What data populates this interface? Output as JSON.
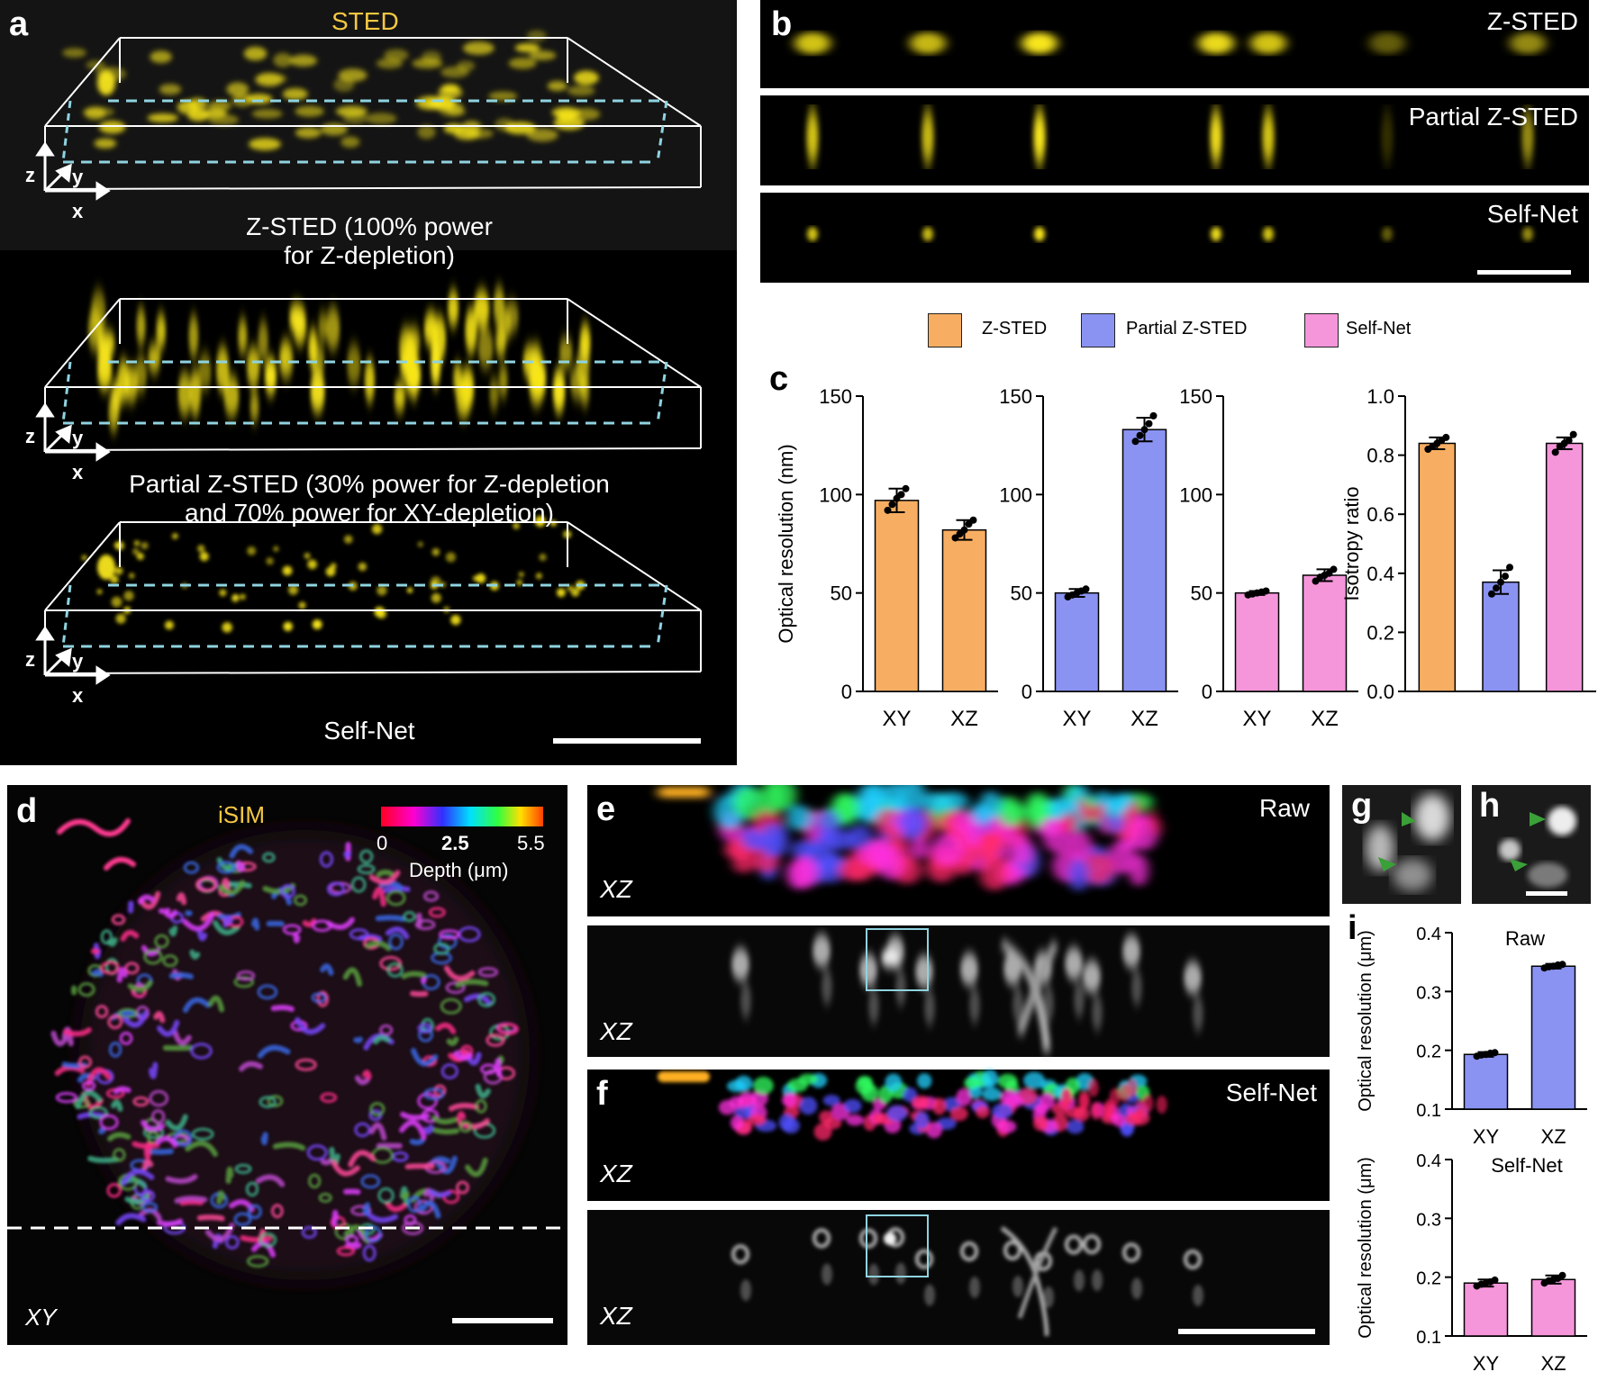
{
  "panel_a": {
    "label": "a",
    "modality": "STED",
    "captions": [
      "Z-STED (100% power",
      "for Z-depletion)",
      "Partial Z-STED (30% power for Z-depletion",
      "and 70% power for XY-depletion)",
      "Self-Net"
    ],
    "axes": {
      "z": "z",
      "y": "y",
      "x": "x"
    }
  },
  "panel_b": {
    "label": "b",
    "rows": [
      "Z-STED",
      "Partial Z-STED",
      "Self-Net"
    ]
  },
  "legend": [
    "Z-STED",
    "Partial Z-STED",
    "Self-Net"
  ],
  "colors": {
    "z_sted": "#F8AE62",
    "partial": "#8A93F2",
    "selfnet": "#F596DA",
    "yellow": "#F7E51A",
    "box": "#8fd3e0"
  },
  "panel_c": {
    "label": "c"
  },
  "panel_d": {
    "label": "d",
    "modality": "iSIM",
    "colorbar_ticks": [
      "0",
      "2.5",
      "5.5"
    ],
    "colorbar_label": "Depth (μm)",
    "view": "XY"
  },
  "panel_e": {
    "label": "e",
    "tag": "Raw",
    "view": "XZ"
  },
  "panel_f": {
    "label": "f",
    "tag": "Self-Net",
    "view": "XZ"
  },
  "panel_g": {
    "label": "g"
  },
  "panel_h": {
    "label": "h"
  },
  "panel_i": {
    "label": "i"
  },
  "chart_data": [
    {
      "type": "bar",
      "panel": "c1",
      "title": "",
      "ylabel": "Optical resolution (nm)",
      "ylim": [
        0,
        150
      ],
      "yticks": [
        0,
        50,
        100,
        150
      ],
      "categories": [
        "XY",
        "XZ"
      ],
      "series": [
        {
          "name": "Z-STED",
          "values": [
            97,
            82
          ]
        }
      ],
      "error": [
        6,
        5
      ],
      "points": [
        [
          92,
          95,
          98,
          100,
          103
        ],
        [
          78,
          80,
          82,
          85,
          87
        ]
      ]
    },
    {
      "type": "bar",
      "panel": "c2",
      "title": "",
      "ylabel": "",
      "ylim": [
        0,
        150
      ],
      "yticks": [
        0,
        50,
        100,
        150
      ],
      "categories": [
        "XY",
        "XZ"
      ],
      "series": [
        {
          "name": "Partial Z-STED",
          "values": [
            50,
            133
          ]
        }
      ],
      "error": [
        2,
        6
      ],
      "points": [
        [
          48,
          49,
          50,
          51,
          52
        ],
        [
          127,
          130,
          133,
          136,
          140
        ]
      ]
    },
    {
      "type": "bar",
      "panel": "c3",
      "title": "",
      "ylabel": "",
      "ylim": [
        0,
        150
      ],
      "yticks": [
        0,
        50,
        100,
        150
      ],
      "categories": [
        "XY",
        "XZ"
      ],
      "series": [
        {
          "name": "Self-Net",
          "values": [
            50,
            59
          ]
        }
      ],
      "error": [
        1,
        3
      ],
      "points": [
        [
          49,
          49.5,
          50,
          50.5,
          51
        ],
        [
          56,
          58,
          59,
          60,
          62
        ]
      ]
    },
    {
      "type": "bar",
      "panel": "c4",
      "title": "",
      "ylabel": "Isotropy ratio",
      "ylim": [
        0,
        1.0
      ],
      "yticks": [
        "0.0",
        "0.2",
        "0.4",
        "0.6",
        "0.8",
        "1.0"
      ],
      "categories": [
        "Z-STED",
        "Partial Z-STED",
        "Self-Net"
      ],
      "series": [
        {
          "name": "Isotropy",
          "values": [
            0.84,
            0.37,
            0.84
          ]
        }
      ],
      "error": [
        0.02,
        0.04,
        0.02
      ],
      "points": [
        [
          0.82,
          0.83,
          0.84,
          0.85,
          0.86
        ],
        [
          0.33,
          0.35,
          0.37,
          0.39,
          0.42
        ],
        [
          0.81,
          0.83,
          0.84,
          0.85,
          0.87
        ]
      ]
    },
    {
      "type": "bar",
      "panel": "i-raw",
      "title": "Raw",
      "ylabel": "Optical resolution (μm)",
      "ylim": [
        0.1,
        0.4
      ],
      "yticks": [
        "0.1",
        "0.2",
        "0.3",
        "0.4"
      ],
      "categories": [
        "XY",
        "XZ"
      ],
      "series": [
        {
          "name": "Raw",
          "values": [
            0.193,
            0.343
          ]
        }
      ],
      "error": [
        0.004,
        0.004
      ],
      "points": [
        [
          0.19,
          0.192,
          0.193,
          0.195,
          0.196
        ],
        [
          0.34,
          0.342,
          0.343,
          0.345,
          0.346
        ]
      ]
    },
    {
      "type": "bar",
      "panel": "i-selfnet",
      "title": "Self-Net",
      "ylabel": "Optical resolution (μm)",
      "ylim": [
        0.1,
        0.4
      ],
      "yticks": [
        "0.1",
        "0.2",
        "0.3",
        "0.4"
      ],
      "categories": [
        "XY",
        "XZ"
      ],
      "series": [
        {
          "name": "Self-Net",
          "values": [
            0.19,
            0.196
          ]
        }
      ],
      "error": [
        0.006,
        0.007
      ],
      "points": [
        [
          0.185,
          0.188,
          0.19,
          0.192,
          0.195
        ],
        [
          0.19,
          0.194,
          0.196,
          0.198,
          0.203
        ]
      ]
    }
  ]
}
